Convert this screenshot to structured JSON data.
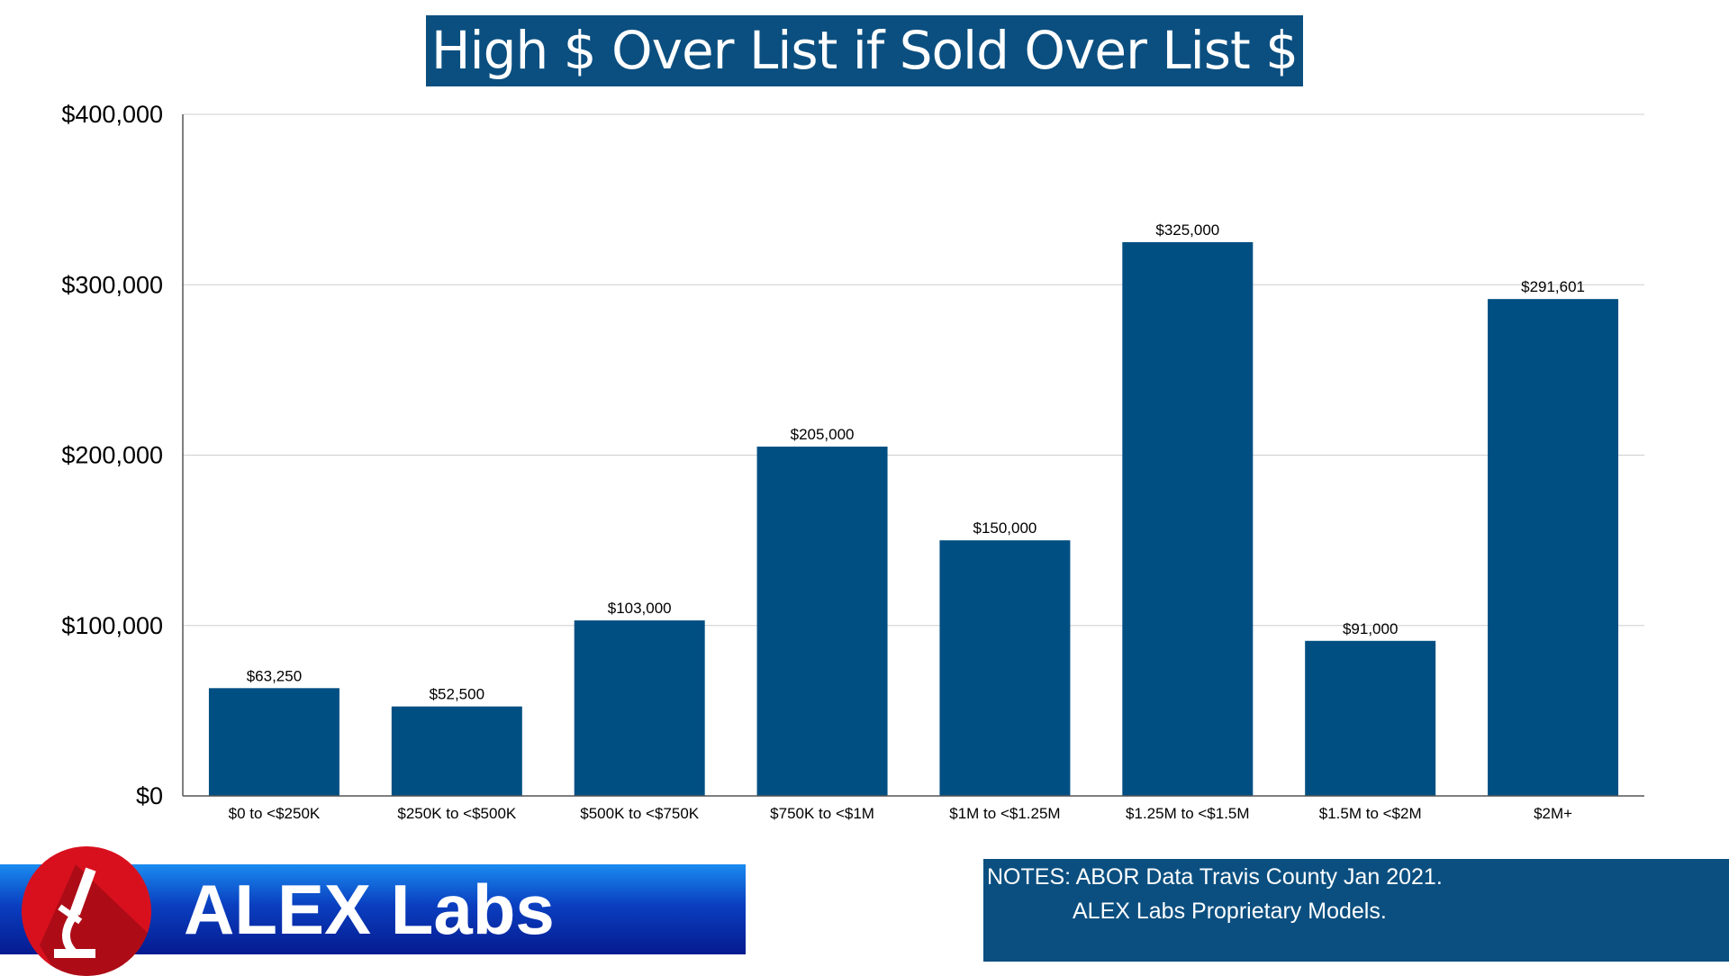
{
  "chart_data": {
    "type": "bar",
    "title": "High $ Over List if Sold Over List $",
    "categories": [
      "$0 to <$250K",
      "$250K to <$500K",
      "$500K to <$750K",
      "$750K to <$1M",
      "$1M to <$1.25M",
      "$1.25M to <$1.5M",
      "$1.5M to <$2M",
      "$2M+"
    ],
    "values": [
      63250,
      52500,
      103000,
      205000,
      150000,
      325000,
      91000,
      291601
    ],
    "data_labels": [
      "$63,250",
      "$52,500",
      "$103,000",
      "$205,000",
      "$150,000",
      "$325,000",
      "$91,000",
      "$291,601"
    ],
    "xlabel": "",
    "ylabel": "",
    "ylim": [
      0,
      400000
    ],
    "yticks": [
      0,
      100000,
      200000,
      300000,
      400000
    ],
    "ytick_labels": [
      "$0",
      "$100,000",
      "$200,000",
      "$300,000",
      "$400,000"
    ],
    "grid": true,
    "bar_color": "#004f82"
  },
  "logo": {
    "text": "ALEX Labs",
    "icon": "microscope-icon"
  },
  "notes": {
    "line1": "NOTES: ABOR Data Travis County Jan 2021.",
    "line2": "ALEX Labs Proprietary Models."
  }
}
